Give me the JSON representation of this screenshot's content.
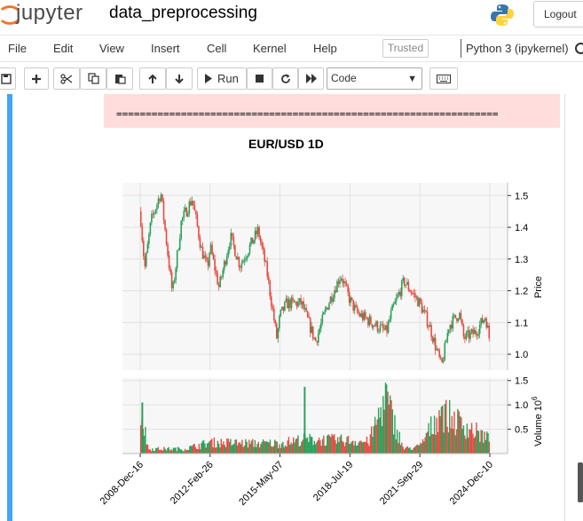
{
  "header": {
    "logo_text": "jupyter",
    "notebook_name": "data_preprocessing",
    "logout_label": "Logout",
    "python_logo_icon": "python-logo-icon",
    "jupyter_logo_icon": "jupyter-logo-icon"
  },
  "menubar": {
    "items": [
      "File",
      "Edit",
      "View",
      "Insert",
      "Cell",
      "Kernel",
      "Help"
    ],
    "trusted_label": "Trusted",
    "kernel_name": "Python 3 (ipykernel)"
  },
  "toolbar": {
    "icons": [
      "save-icon",
      "plus-icon",
      "scissors-icon",
      "copy-icon",
      "paste-icon",
      "arrow-up-icon",
      "arrow-down-icon"
    ],
    "run_label": "Run",
    "stop_icon": "stop-icon",
    "restart_icon": "restart-icon",
    "fast_forward_icon": "fast-forward-icon",
    "cell_type": "Code",
    "keyboard_icon": "keyboard-icon"
  },
  "output": {
    "stderr_text": "=================================================================",
    "stderr_color": "#ffdddd"
  },
  "chart_data": {
    "type": "candlestick",
    "title": "EUR/USD 1D",
    "price_axis_label": "Price",
    "volume_axis_label": "Volume",
    "volume_exponent": "10",
    "volume_exponent_power": "6",
    "x_tick_labels": [
      "2008-Dec-16",
      "2012-Feb-26",
      "2015-May-07",
      "2018-Jul-19",
      "2021-Sep-29",
      "2024-Dec-10"
    ],
    "price_ticks": [
      "1.0",
      "1.1",
      "1.2",
      "1.3",
      "1.4",
      "1.5"
    ],
    "volume_ticks": [
      "0.5",
      "1.0",
      "1.5"
    ],
    "price_ylim": [
      0.95,
      1.54
    ],
    "volume_ylim": [
      0,
      1.55
    ],
    "x_range": [
      "2008-Dec-16",
      "2024-Dec-10"
    ],
    "price_path": [
      [
        "2008-Dec-16",
        1.45
      ],
      [
        "2009-Mar-01",
        1.27
      ],
      [
        "2009-Jun-15",
        1.42
      ],
      [
        "2009-Nov-25",
        1.51
      ],
      [
        "2010-Jun-07",
        1.19
      ],
      [
        "2010-Nov-04",
        1.42
      ],
      [
        "2011-May-03",
        1.49
      ],
      [
        "2011-Oct-04",
        1.33
      ],
      [
        "2012-Jan-13",
        1.27
      ],
      [
        "2012-Feb-26",
        1.34
      ],
      [
        "2012-Jul-24",
        1.21
      ],
      [
        "2013-Feb-01",
        1.37
      ],
      [
        "2013-Jul-09",
        1.28
      ],
      [
        "2014-May-08",
        1.39
      ],
      [
        "2014-Oct-01",
        1.26
      ],
      [
        "2015-Mar-16",
        1.05
      ],
      [
        "2015-May-07",
        1.12
      ],
      [
        "2015-Aug-24",
        1.16
      ],
      [
        "2016-May-03",
        1.16
      ],
      [
        "2016-Dec-20",
        1.04
      ],
      [
        "2017-Jun-30",
        1.15
      ],
      [
        "2018-Feb-15",
        1.25
      ],
      [
        "2018-Jul-19",
        1.17
      ],
      [
        "2018-Nov-12",
        1.13
      ],
      [
        "2019-Oct-01",
        1.09
      ],
      [
        "2020-Mar-20",
        1.07
      ],
      [
        "2020-Jun-10",
        1.13
      ],
      [
        "2021-Jan-06",
        1.23
      ],
      [
        "2021-Sep-29",
        1.16
      ],
      [
        "2022-Mar-07",
        1.09
      ],
      [
        "2022-Sep-27",
        0.96
      ],
      [
        "2023-Jan-26",
        1.09
      ],
      [
        "2023-Jul-18",
        1.13
      ],
      [
        "2023-Oct-03",
        1.05
      ],
      [
        "2024-Apr-16",
        1.07
      ],
      [
        "2024-Sep-30",
        1.12
      ],
      [
        "2024-Dec-10",
        1.04
      ]
    ],
    "volume_profile": [
      [
        "2008-Dec-16",
        1.0
      ],
      [
        "2009-May-01",
        0.1
      ],
      [
        "2011-Jan-01",
        0.1
      ],
      [
        "2012-Feb-26",
        0.24
      ],
      [
        "2014-Jan-01",
        0.22
      ],
      [
        "2015-May-07",
        0.22
      ],
      [
        "2016-May-01",
        0.3
      ],
      [
        "2017-Jan-01",
        0.3
      ],
      [
        "2018-Jul-19",
        0.28
      ],
      [
        "2019-Jun-01",
        0.25
      ],
      [
        "2020-Mar-01",
        1.2
      ],
      [
        "2021-Jan-01",
        0.1
      ],
      [
        "2021-Sep-29",
        0.15
      ],
      [
        "2022-Sep-01",
        0.9
      ],
      [
        "2024-Dec-10",
        0.3
      ]
    ],
    "volume_spikes": [
      [
        "2009-Jan-20",
        1.05
      ],
      [
        "2016-Jun-24",
        1.37
      ],
      [
        "2020-Mar-18",
        1.42
      ],
      [
        "2022-Sep-28",
        0.96
      ]
    ],
    "up_color": "#2ca05a",
    "down_color": "#e84a40",
    "plot_background": "#f7f7f7",
    "grid": true
  }
}
